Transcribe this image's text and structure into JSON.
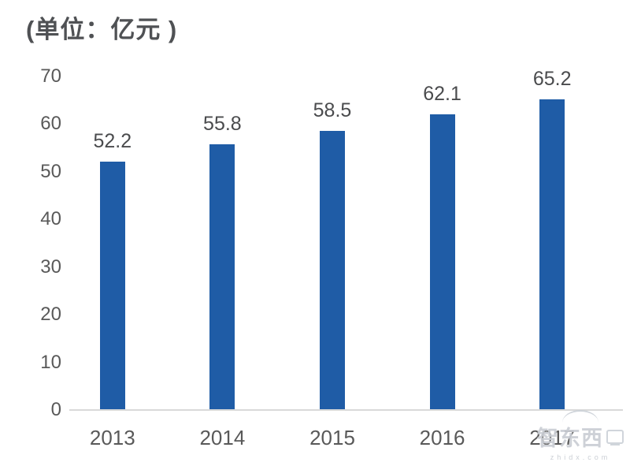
{
  "title": "(单位：亿元 )",
  "watermark": {
    "logo_text": "智东西",
    "domain": "zhidx.com"
  },
  "chart_data": {
    "type": "bar",
    "title": "(单位：亿元 )",
    "categories": [
      "2013",
      "2014",
      "2015",
      "2016",
      "2017"
    ],
    "values": [
      52.2,
      55.8,
      58.5,
      62.1,
      65.2
    ],
    "xlabel": "",
    "ylabel": "",
    "ylim": [
      0,
      70
    ],
    "yticks": [
      0,
      10,
      20,
      30,
      40,
      50,
      60,
      70
    ],
    "grid": false,
    "legend_position": "none",
    "bar_color": "#1f5ca6",
    "value_label_color": "#4a4b4d",
    "axis_label_color": "#595959",
    "axis_line_color": "#d9d9d9",
    "background_color": "#ffffff"
  }
}
